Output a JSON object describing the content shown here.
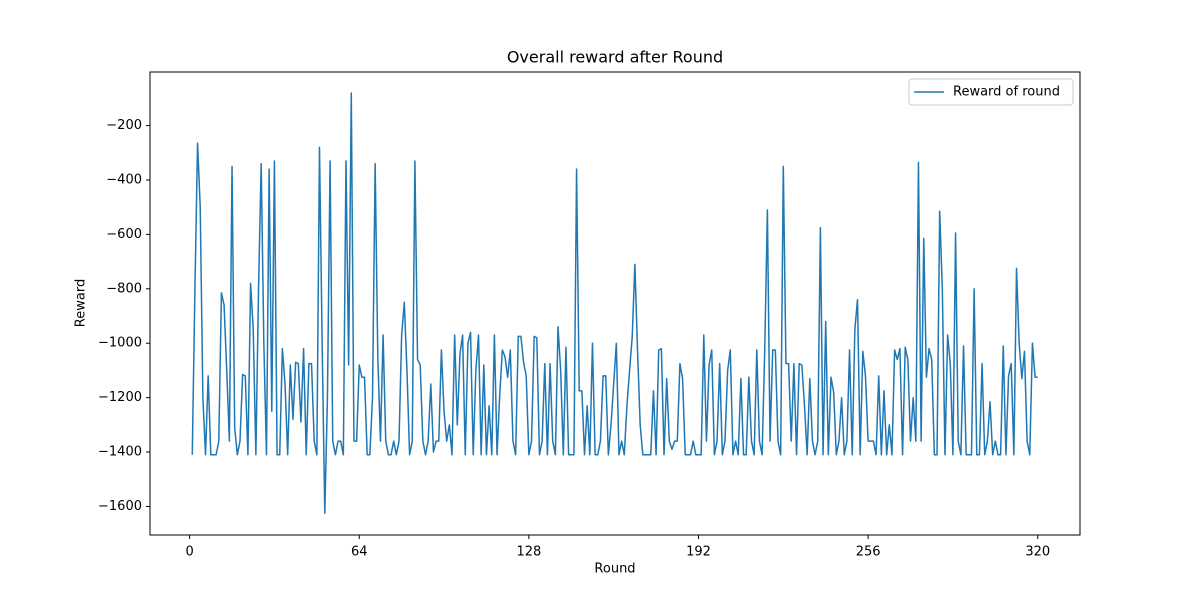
{
  "chart_data": {
    "type": "line",
    "title": "Overall reward after Round",
    "x_label": "Round",
    "y_label": "Reward",
    "x": [
      1,
      2,
      3,
      4,
      5,
      6,
      7,
      8,
      9,
      10,
      11,
      12,
      13,
      14,
      15,
      16,
      17,
      18,
      19,
      20,
      21,
      22,
      23,
      24,
      25,
      26,
      27,
      28,
      29,
      30,
      31,
      32,
      33,
      34,
      35,
      36,
      37,
      38,
      39,
      40,
      41,
      42,
      43,
      44,
      45,
      46,
      47,
      48,
      49,
      50,
      51,
      52,
      53,
      54,
      55,
      56,
      57,
      58,
      59,
      60,
      61,
      62,
      63,
      64,
      65,
      66,
      67,
      68,
      69,
      70,
      71,
      72,
      73,
      74,
      75,
      76,
      77,
      78,
      79,
      80,
      81,
      82,
      83,
      84,
      85,
      86,
      87,
      88,
      89,
      90,
      91,
      92,
      93,
      94,
      95,
      96,
      97,
      98,
      99,
      100,
      101,
      102,
      103,
      104,
      105,
      106,
      107,
      108,
      109,
      110,
      111,
      112,
      113,
      114,
      115,
      116,
      117,
      118,
      119,
      120,
      121,
      122,
      123,
      124,
      125,
      126,
      127,
      128,
      129,
      130,
      131,
      132,
      133,
      134,
      135,
      136,
      137,
      138,
      139,
      140,
      141,
      142,
      143,
      144,
      145,
      146,
      147,
      148,
      149,
      150,
      151,
      152,
      153,
      154,
      155,
      156,
      157,
      158,
      159,
      160,
      161,
      162,
      163,
      164,
      165,
      166,
      167,
      168,
      169,
      170,
      171,
      172,
      173,
      174,
      175,
      176,
      177,
      178,
      179,
      180,
      181,
      182,
      183,
      184,
      185,
      186,
      187,
      188,
      189,
      190,
      191,
      192,
      193,
      194,
      195,
      196,
      197,
      198,
      199,
      200,
      201,
      202,
      203,
      204,
      205,
      206,
      207,
      208,
      209,
      210,
      211,
      212,
      213,
      214,
      215,
      216,
      217,
      218,
      219,
      220,
      221,
      222,
      223,
      224,
      225,
      226,
      227,
      228,
      229,
      230,
      231,
      232,
      233,
      234,
      235,
      236,
      237,
      238,
      239,
      240,
      241,
      242,
      243,
      244,
      245,
      246,
      247,
      248,
      249,
      250,
      251,
      252,
      253,
      254,
      255,
      256,
      257,
      258,
      259,
      260,
      261,
      262,
      263,
      264,
      265,
      266,
      267,
      268,
      269,
      270,
      271,
      272,
      273,
      274,
      275,
      276,
      277,
      278,
      279,
      280,
      281,
      282,
      283,
      284,
      285,
      286,
      287,
      288,
      289,
      290,
      291,
      292,
      293,
      294,
      295,
      296,
      297,
      298,
      299,
      300,
      301,
      302,
      303,
      304,
      305,
      306,
      307,
      308,
      309,
      310,
      311,
      312,
      313,
      314,
      315,
      316,
      317,
      318,
      319,
      320
    ],
    "series": [
      {
        "name": "Reward of round",
        "color": "#1f77b4",
        "values": [
          -1410,
          -800,
          -265,
          -500,
          -1200,
          -1410,
          -1120,
          -1410,
          -1410,
          -1410,
          -1360,
          -815,
          -860,
          -1100,
          -1360,
          -350,
          -1310,
          -1410,
          -1360,
          -1115,
          -1120,
          -1410,
          -780,
          -950,
          -1410,
          -800,
          -340,
          -1000,
          -1410,
          -360,
          -1250,
          -330,
          -1410,
          -1410,
          -1020,
          -1150,
          -1410,
          -1080,
          -1280,
          -1070,
          -1075,
          -1290,
          -1020,
          -1410,
          -1075,
          -1075,
          -1360,
          -1410,
          -280,
          -1000,
          -1625,
          -1200,
          -330,
          -1360,
          -1410,
          -1360,
          -1360,
          -1410,
          -330,
          -1080,
          -80,
          -1360,
          -1360,
          -1080,
          -1125,
          -1125,
          -1410,
          -1410,
          -1200,
          -340,
          -1050,
          -1360,
          -970,
          -1360,
          -1410,
          -1410,
          -1360,
          -1410,
          -1360,
          -970,
          -850,
          -1100,
          -1410,
          -1360,
          -330,
          -1060,
          -1080,
          -1360,
          -1410,
          -1360,
          -1150,
          -1400,
          -1360,
          -1360,
          -1025,
          -1250,
          -1360,
          -1300,
          -1410,
          -970,
          -1300,
          -1040,
          -970,
          -1410,
          -1000,
          -960,
          -1410,
          -1100,
          -970,
          -1410,
          -1080,
          -1410,
          -1230,
          -1410,
          -970,
          -1410,
          -1190,
          -1025,
          -1050,
          -1125,
          -1025,
          -1360,
          -1410,
          -975,
          -975,
          -1070,
          -1120,
          -1410,
          -1360,
          -975,
          -980,
          -1410,
          -1360,
          -1075,
          -1410,
          -1075,
          -1360,
          -1410,
          -940,
          -1100,
          -1410,
          -1015,
          -1410,
          -1410,
          -1410,
          -360,
          -1175,
          -1175,
          -1410,
          -1230,
          -1410,
          -1000,
          -1410,
          -1410,
          -1360,
          -1120,
          -1120,
          -1410,
          -1300,
          -1150,
          -1000,
          -1410,
          -1360,
          -1410,
          -1230,
          -1100,
          -975,
          -710,
          -1025,
          -1300,
          -1410,
          -1410,
          -1410,
          -1410,
          -1175,
          -1410,
          -1025,
          -1020,
          -1410,
          -1130,
          -1360,
          -1390,
          -1360,
          -1360,
          -1075,
          -1130,
          -1410,
          -1410,
          -1410,
          -1360,
          -1410,
          -1410,
          -1410,
          -970,
          -1360,
          -1080,
          -1025,
          -1410,
          -1360,
          -1075,
          -1410,
          -1360,
          -1100,
          -1025,
          -1410,
          -1360,
          -1410,
          -1130,
          -1410,
          -1410,
          -1125,
          -1360,
          -1410,
          -1025,
          -1360,
          -1410,
          -1025,
          -510,
          -1360,
          -1025,
          -1025,
          -1360,
          -1410,
          -350,
          -1075,
          -1075,
          -1360,
          -1075,
          -1410,
          -1075,
          -1080,
          -1230,
          -1410,
          -1130,
          -1360,
          -1410,
          -1360,
          -575,
          -1410,
          -920,
          -1410,
          -1125,
          -1180,
          -1410,
          -1360,
          -1200,
          -1410,
          -1360,
          -1025,
          -1410,
          -950,
          -840,
          -1410,
          -1030,
          -1120,
          -1360,
          -1360,
          -1360,
          -1410,
          -1120,
          -1410,
          -1175,
          -1410,
          -1300,
          -1410,
          -1025,
          -1060,
          -1020,
          -1410,
          -1015,
          -1060,
          -1360,
          -1200,
          -1360,
          -335,
          -1360,
          -615,
          -1125,
          -1020,
          -1060,
          -1410,
          -1410,
          -515,
          -800,
          -1410,
          -970,
          -1075,
          -1410,
          -595,
          -1360,
          -1410,
          -1010,
          -1410,
          -1410,
          -1410,
          -800,
          -1410,
          -1410,
          -1075,
          -1410,
          -1360,
          -1215,
          -1410,
          -1360,
          -1410,
          -1410,
          -1010,
          -1410,
          -1120,
          -1075,
          -1410,
          -725,
          -1000,
          -1130,
          -1030,
          -1360,
          -1410,
          -1000,
          -1125,
          -1125
        ]
      }
    ],
    "xlim": [
      -14.95,
      335.95
    ],
    "xticks": [
      0,
      64,
      128,
      192,
      256,
      320
    ],
    "ylim": [
      -1705,
      -3
    ],
    "yticks": [
      {
        "value": -1600,
        "label": "−1600"
      },
      {
        "value": -1400,
        "label": "−1400"
      },
      {
        "value": -1200,
        "label": "−1200"
      },
      {
        "value": -1000,
        "label": "−1000"
      },
      {
        "value": -800,
        "label": "−800"
      },
      {
        "value": -600,
        "label": "−600"
      },
      {
        "value": -400,
        "label": "−400"
      },
      {
        "value": -200,
        "label": "−200"
      }
    ],
    "legend": "upper right",
    "grid": false
  }
}
